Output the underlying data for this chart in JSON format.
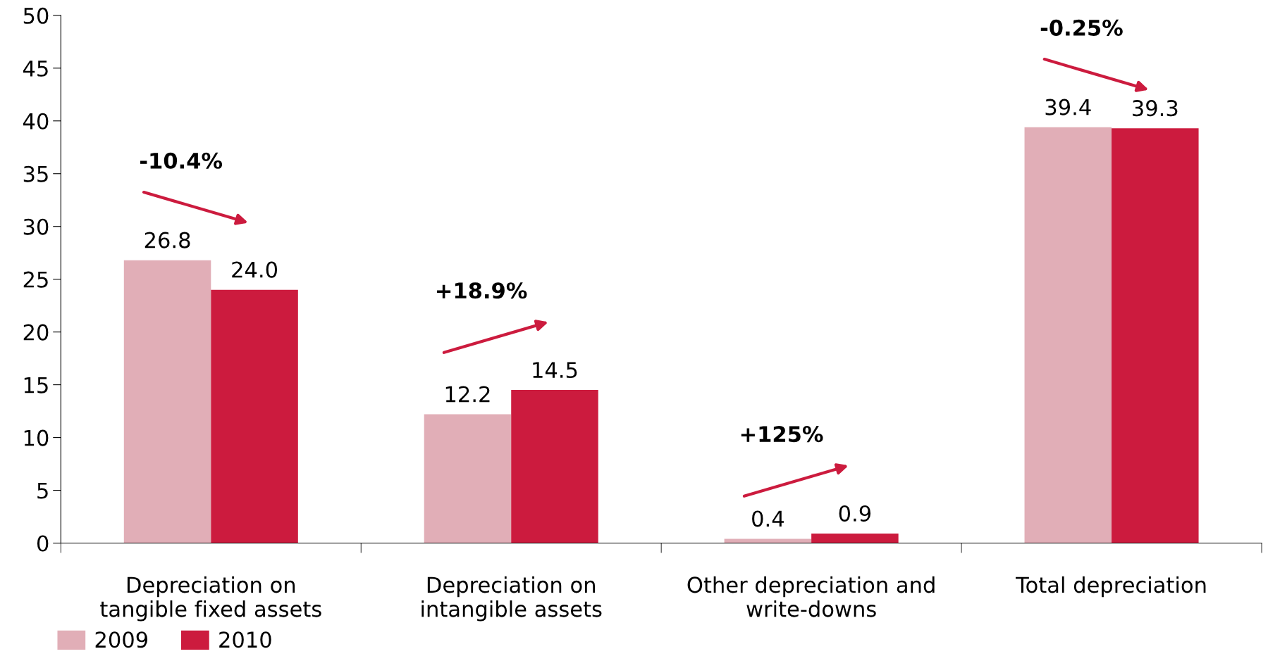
{
  "chart_data": {
    "type": "bar",
    "categories": [
      "Depreciation on\ntangible fixed assets",
      "Depreciation on\nintangible assets",
      "Other depreciation and\nwrite-downs",
      "Total depreciation"
    ],
    "series": [
      {
        "name": "2009",
        "color": "#e1aeb7",
        "values": [
          26.8,
          12.2,
          0.4,
          39.4
        ],
        "value_labels": [
          "26.8",
          "12.2",
          "0.4",
          "39.4"
        ]
      },
      {
        "name": "2010",
        "color": "#cc1b3e",
        "values": [
          24.0,
          14.5,
          0.9,
          39.3
        ],
        "value_labels": [
          "24.0",
          "14.5",
          "0.9",
          "39.3"
        ]
      }
    ],
    "ylim": [
      0,
      50
    ],
    "yticks": [
      0,
      5,
      10,
      15,
      20,
      25,
      30,
      35,
      40,
      45,
      50
    ],
    "grid": false,
    "legend": "bottom left",
    "annotations": [
      "-10.4%",
      "+18.9%",
      "+125%",
      "-0.25%"
    ]
  }
}
